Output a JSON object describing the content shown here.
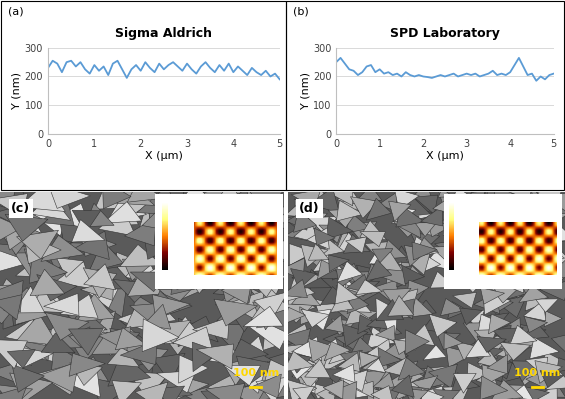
{
  "chart_data": [
    {
      "type": "line",
      "panel_label": "(a)",
      "title": "Sigma Aldrich",
      "x_label": "X (μm)",
      "y_label": "Y (nm)",
      "color": "#5b9bd5",
      "grid": true,
      "xlim": [
        0,
        5
      ],
      "xticks": [
        0,
        1,
        2,
        3,
        4,
        5
      ],
      "ylim": [
        0,
        300
      ],
      "yticks": [
        0,
        100,
        200,
        300
      ],
      "x": [
        0,
        0.1,
        0.2,
        0.3,
        0.4,
        0.5,
        0.6,
        0.7,
        0.8,
        0.9,
        1.0,
        1.1,
        1.2,
        1.3,
        1.4,
        1.5,
        1.6,
        1.7,
        1.8,
        1.9,
        2.0,
        2.1,
        2.2,
        2.3,
        2.4,
        2.5,
        2.6,
        2.7,
        2.8,
        2.9,
        3.0,
        3.1,
        3.2,
        3.3,
        3.4,
        3.5,
        3.6,
        3.7,
        3.8,
        3.9,
        4.0,
        4.1,
        4.2,
        4.3,
        4.4,
        4.5,
        4.6,
        4.7,
        4.8,
        4.9,
        5.0
      ],
      "values": [
        230,
        255,
        245,
        215,
        250,
        255,
        235,
        250,
        225,
        210,
        240,
        220,
        235,
        205,
        245,
        255,
        225,
        195,
        225,
        240,
        220,
        250,
        230,
        215,
        245,
        225,
        240,
        250,
        235,
        220,
        245,
        225,
        210,
        235,
        250,
        230,
        215,
        240,
        220,
        245,
        215,
        235,
        220,
        205,
        230,
        215,
        205,
        220,
        200,
        210,
        190
      ]
    },
    {
      "type": "line",
      "panel_label": "(b)",
      "title": "SPD Laboratory",
      "x_label": "X (μm)",
      "y_label": "Y (nm)",
      "color": "#5b9bd5",
      "grid": true,
      "xlim": [
        0,
        5
      ],
      "xticks": [
        0,
        1,
        2,
        3,
        4,
        5
      ],
      "ylim": [
        0,
        300
      ],
      "yticks": [
        0,
        100,
        200,
        300
      ],
      "x": [
        0,
        0.1,
        0.2,
        0.3,
        0.4,
        0.5,
        0.6,
        0.7,
        0.8,
        0.9,
        1.0,
        1.1,
        1.2,
        1.3,
        1.4,
        1.5,
        1.6,
        1.7,
        1.8,
        1.9,
        2.0,
        2.1,
        2.2,
        2.3,
        2.4,
        2.5,
        2.6,
        2.7,
        2.8,
        2.9,
        3.0,
        3.1,
        3.2,
        3.3,
        3.4,
        3.5,
        3.6,
        3.7,
        3.8,
        3.9,
        4.0,
        4.1,
        4.2,
        4.3,
        4.4,
        4.5,
        4.6,
        4.7,
        4.8,
        4.9,
        5.0
      ],
      "values": [
        250,
        265,
        245,
        225,
        220,
        205,
        215,
        235,
        240,
        215,
        225,
        210,
        215,
        205,
        210,
        200,
        215,
        205,
        200,
        205,
        200,
        198,
        195,
        200,
        205,
        200,
        205,
        210,
        200,
        205,
        210,
        205,
        210,
        200,
        205,
        210,
        220,
        205,
        210,
        205,
        215,
        240,
        265,
        235,
        205,
        210,
        185,
        200,
        190,
        205,
        210
      ]
    }
  ],
  "images": [
    {
      "panel_label": "(c)",
      "scale_bar": "100 nm"
    },
    {
      "panel_label": "(d)",
      "scale_bar": "100 nm"
    }
  ]
}
